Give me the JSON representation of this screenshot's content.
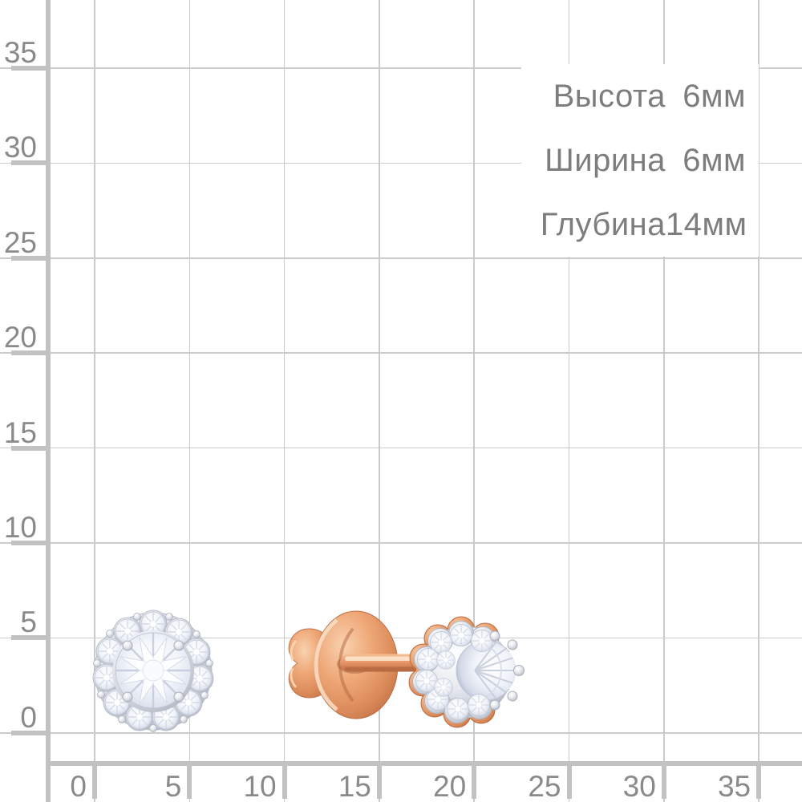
{
  "page": {
    "background": "#ffffff",
    "language": "ru"
  },
  "ruler": {
    "unit": "mm",
    "x_axis": {
      "tick_labels": [
        "0",
        "5",
        "10",
        "15",
        "20",
        "25",
        "30",
        "35"
      ],
      "line_positions": [
        118,
        236.3,
        354.6,
        472.9,
        591.2,
        709.5,
        827.8,
        946.1
      ]
    },
    "y_axis": {
      "tick_labels": [
        "35",
        "30",
        "25",
        "20",
        "15",
        "10",
        "5",
        "0"
      ],
      "line_positions": [
        85,
        203.4,
        321.8,
        440.2,
        558.6,
        677,
        795.4,
        913.8
      ]
    },
    "colors": {
      "grid_line": "#cbcbcb",
      "ruler_bar": "#c2c2c2",
      "tick": "#c2c2c2",
      "label": "#8a8a8a"
    }
  },
  "dims": {
    "text_color": "#7d7d7d",
    "rows": [
      {
        "label": "Высота",
        "value": "6мм"
      },
      {
        "label": "Ширина",
        "value": "6мм"
      },
      {
        "label": "Глубина",
        "value": "14мм"
      }
    ]
  },
  "product": {
    "kind": "stud-earrings-photo",
    "views": [
      {
        "name": "front-view-halo-stud"
      },
      {
        "name": "side-view-stud-with-butterfly-back"
      }
    ],
    "colors": {
      "rose_gold_light": "#f9d2b0",
      "rose_gold": "#e89a6c",
      "rose_gold_dark": "#b5653c",
      "white_gold": "#c9cdd7",
      "stone_white": "#f5f7fb",
      "stone_facet": "#c4cbda"
    }
  }
}
